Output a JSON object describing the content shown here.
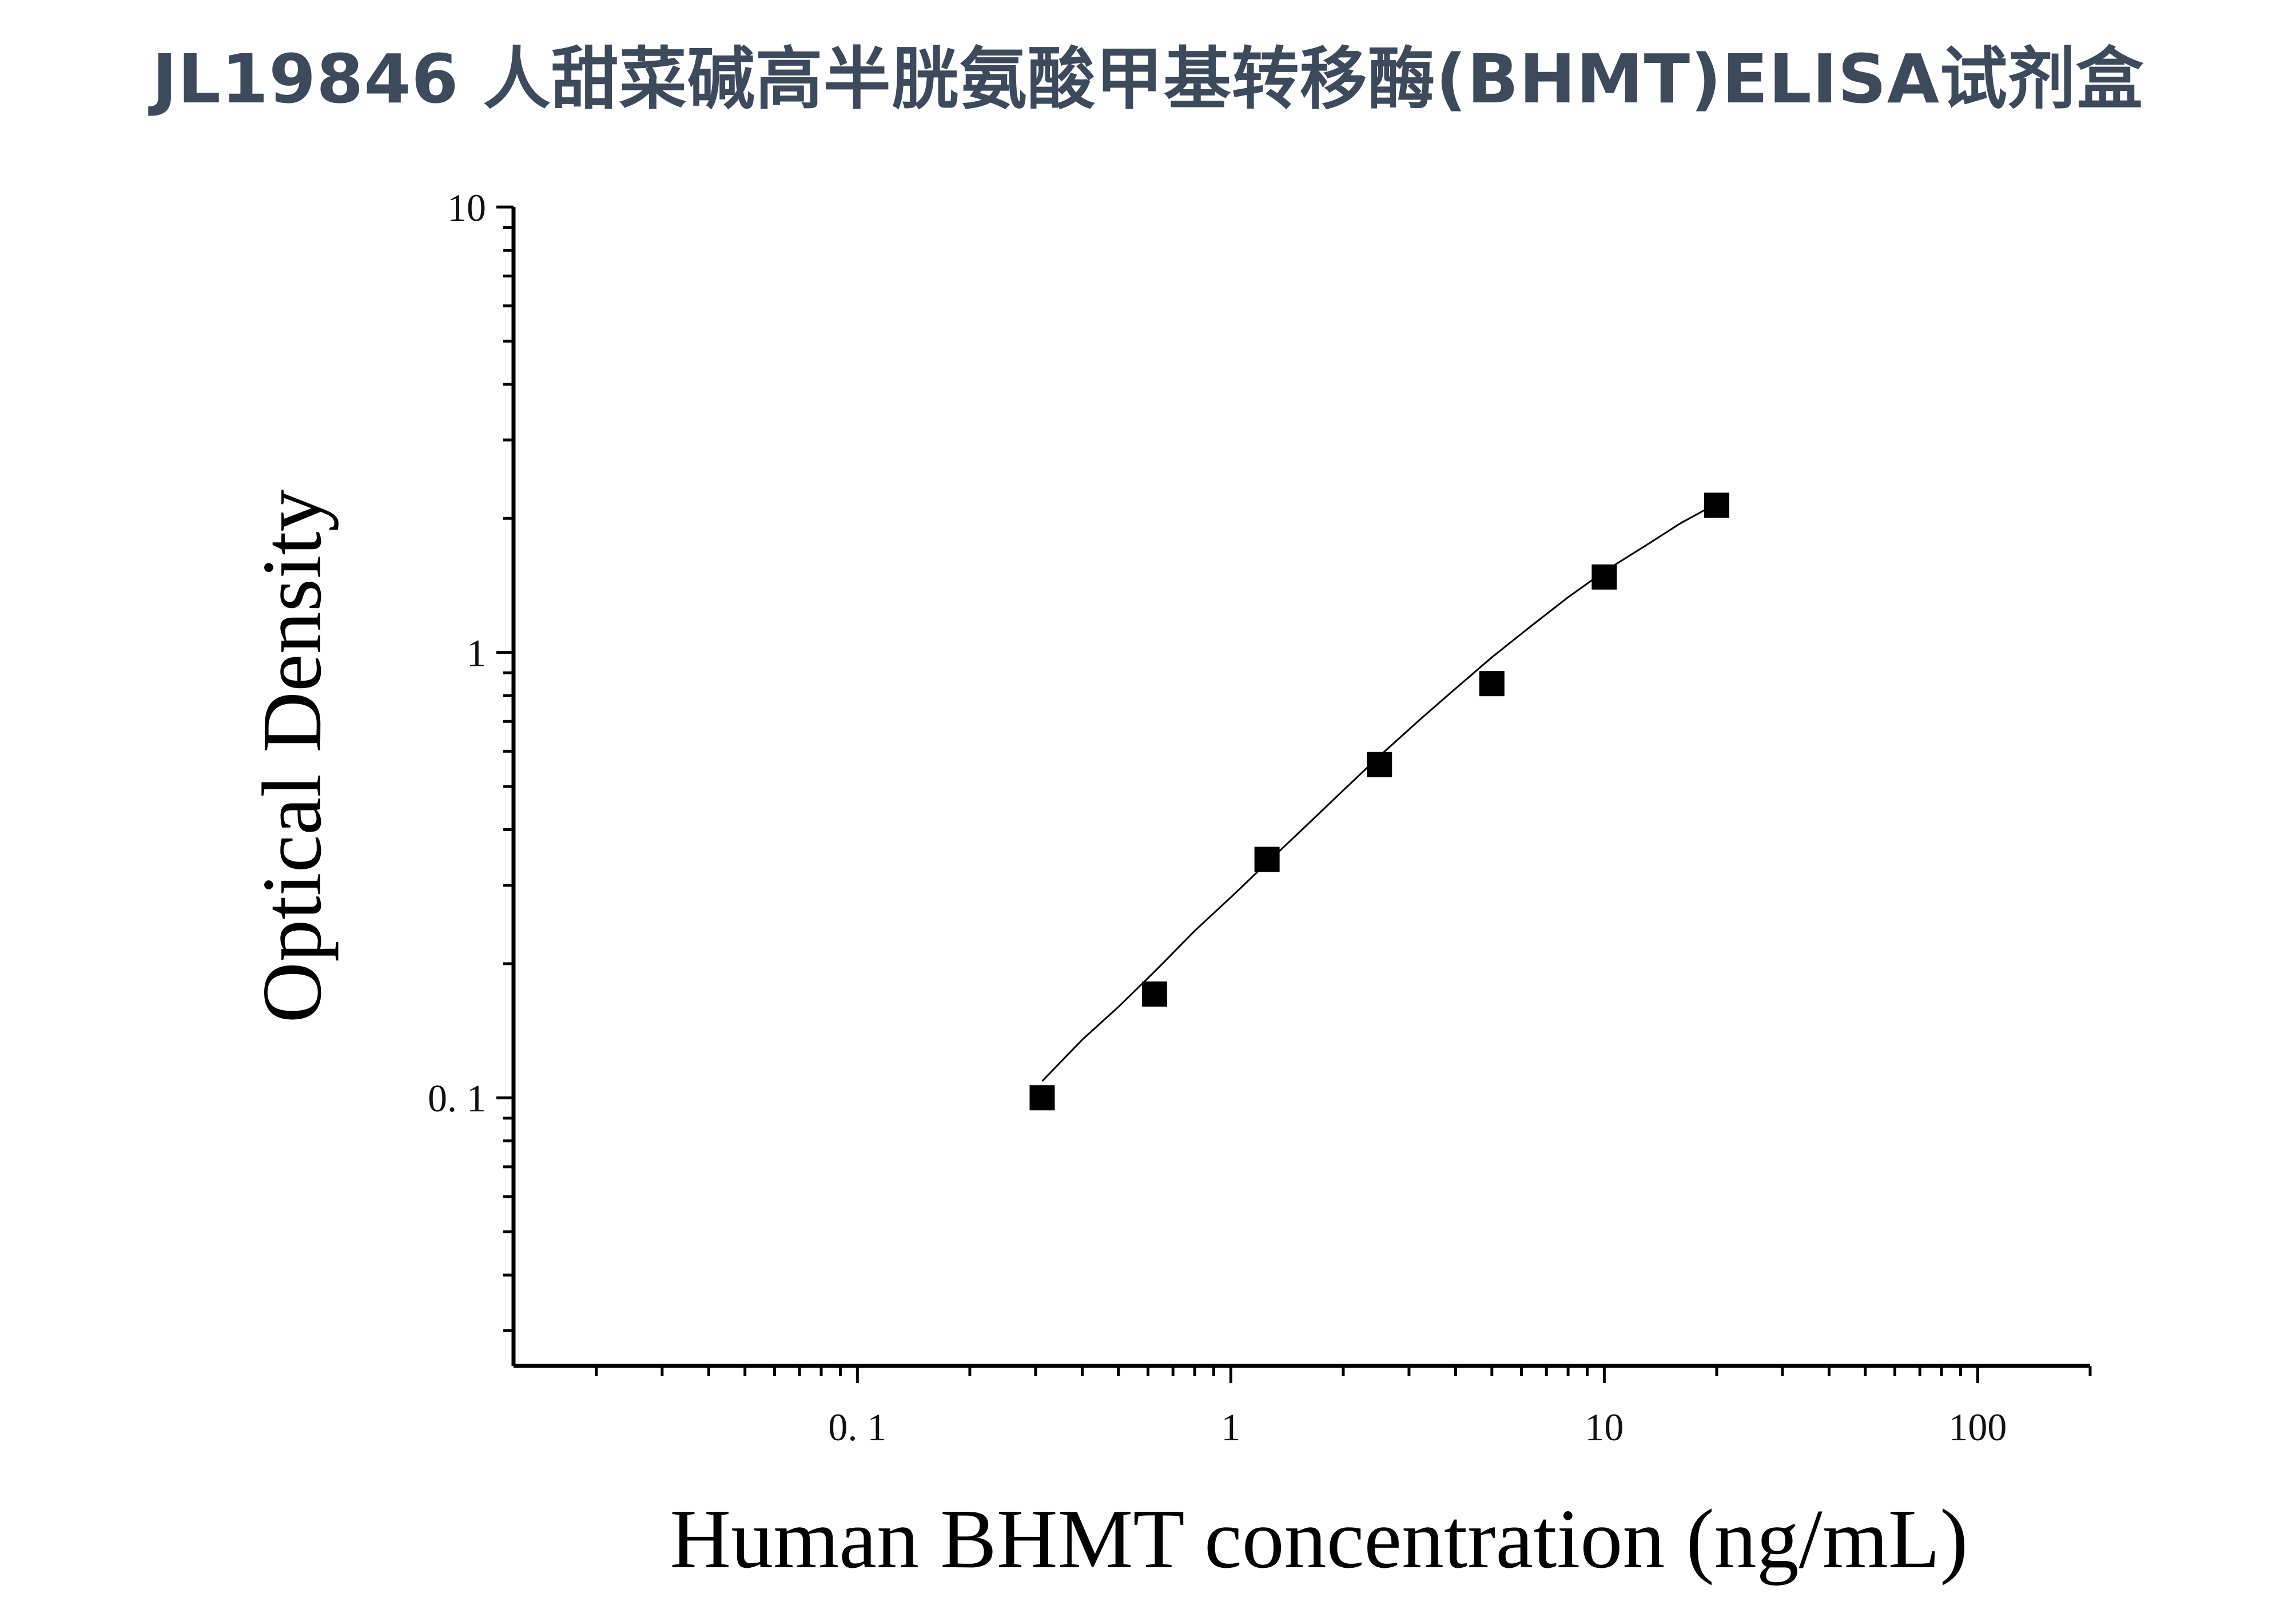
{
  "page": {
    "title": "JL19846 人甜菜碱高半胱氨酸甲基转移酶(BHMT)ELISA试剂盒"
  },
  "chart_data": {
    "type": "scatter",
    "title": "JL19846 人甜菜碱高半胱氨酸甲基转移酶(BHMT)ELISA试剂盒",
    "xlabel": "Human BHMT concentration (ng/mL)",
    "ylabel": "Optical Density",
    "x_scale": "log",
    "y_scale": "log",
    "xlim": [
      0.012,
      200
    ],
    "ylim": [
      0.025,
      10
    ],
    "x_ticks": [
      {
        "value": 0.1,
        "label": "0. 1"
      },
      {
        "value": 1,
        "label": "1"
      },
      {
        "value": 10,
        "label": "10"
      },
      {
        "value": 100,
        "label": "100"
      }
    ],
    "y_ticks": [
      {
        "value": 0.1,
        "label": "0. 1"
      },
      {
        "value": 1,
        "label": "1"
      },
      {
        "value": 10,
        "label": "10"
      }
    ],
    "grid": false,
    "legend": "none",
    "marker": "square",
    "colors": {
      "marker": "#000000",
      "fit_line": "#000000",
      "axis": "#000000"
    },
    "series": [
      {
        "x": [
          0.3125,
          0.625,
          1.25,
          2.5,
          5,
          10,
          20
        ],
        "y": [
          0.1,
          0.171,
          0.343,
          0.56,
          0.851,
          1.477,
          2.14
        ]
      }
    ],
    "fit_curve": {
      "x": [
        0.3125,
        0.4,
        0.5,
        0.625,
        0.8,
        1.0,
        1.25,
        1.6,
        2.0,
        2.5,
        3.2,
        4.0,
        5.0,
        6.4,
        8.0,
        10.0,
        12.8,
        16.0,
        20.0
      ],
      "y": [
        0.109,
        0.135,
        0.16,
        0.192,
        0.237,
        0.282,
        0.337,
        0.41,
        0.49,
        0.585,
        0.705,
        0.83,
        0.975,
        1.15,
        1.33,
        1.52,
        1.73,
        1.95,
        2.16
      ]
    }
  }
}
